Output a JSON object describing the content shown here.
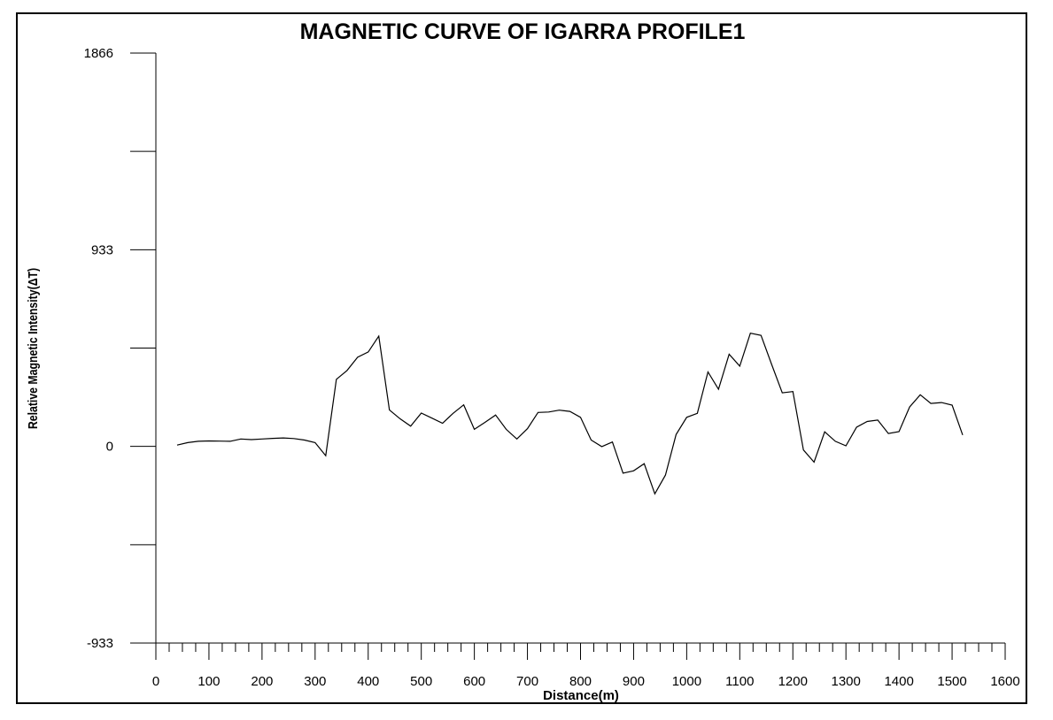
{
  "chart_data": {
    "type": "line",
    "title": "MAGNETIC CURVE OF IGARRA PROFILE1",
    "xlabel": "Distance(m)",
    "ylabel": "Relative Magnetic Intensity(ΔT)",
    "xlim": [
      0,
      1600
    ],
    "ylim": [
      -933,
      1866
    ],
    "x_ticks": [
      0,
      100,
      200,
      300,
      400,
      500,
      600,
      700,
      800,
      900,
      1000,
      1100,
      1200,
      1300,
      1400,
      1500,
      1600
    ],
    "x_tick_labels": [
      "0",
      "100",
      "200",
      "300",
      "400",
      "500",
      "600",
      "700",
      "800",
      "900",
      "1000",
      "1100",
      "1200",
      "1300",
      "1400",
      "1500",
      "1600"
    ],
    "x_minor_step": 25,
    "y_ticks": [
      -933,
      -466.5,
      0,
      466.5,
      933,
      1399.5,
      1866
    ],
    "y_tick_labels": [
      "-933",
      "",
      "0",
      "",
      "933",
      "",
      "1866"
    ],
    "grid": false,
    "line_color": "#000000",
    "series": [
      {
        "x": [
          40,
          60,
          80,
          100,
          120,
          140,
          160,
          180,
          200,
          220,
          240,
          260,
          280,
          300,
          320,
          340,
          360,
          380,
          400,
          420,
          440,
          460,
          480,
          500,
          520,
          540,
          560,
          580,
          600,
          620,
          640,
          660,
          680,
          700,
          720,
          740,
          760,
          780,
          800,
          820,
          840,
          860,
          880,
          900,
          920,
          940,
          960,
          980,
          1000,
          1020,
          1040,
          1060,
          1080,
          1100,
          1120,
          1140,
          1160,
          1180,
          1200,
          1220,
          1240,
          1260,
          1280,
          1300,
          1320,
          1340,
          1360,
          1380,
          1400,
          1420,
          1440,
          1460,
          1480,
          1500,
          1520
        ],
        "y": [
          6,
          18,
          24,
          26,
          25,
          24,
          35,
          32,
          35,
          38,
          40,
          37,
          30,
          18,
          -44,
          318,
          360,
          423,
          448,
          523,
          173,
          131,
          96,
          158,
          134,
          110,
          157,
          197,
          81,
          114,
          149,
          81,
          35,
          84,
          161,
          163,
          172,
          166,
          138,
          30,
          -1,
          21,
          -127,
          -116,
          -82,
          -225,
          -136,
          56,
          138,
          157,
          353,
          271,
          437,
          381,
          537,
          527,
          389,
          254,
          260,
          -17,
          -75,
          69,
          24,
          3,
          91,
          118,
          125,
          61,
          70,
          187,
          245,
          204,
          208,
          196,
          54
        ]
      }
    ]
  }
}
